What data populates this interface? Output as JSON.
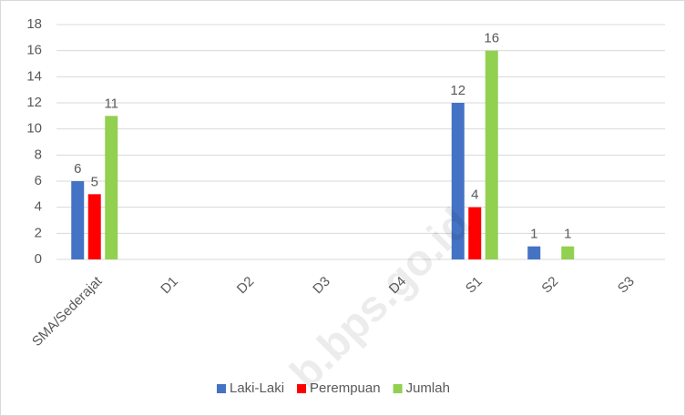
{
  "chart_data": {
    "type": "bar",
    "categories": [
      "SMA/Sederajat",
      "D1",
      "D2",
      "D3",
      "D4",
      "S1",
      "S2",
      "S3"
    ],
    "series": [
      {
        "name": "Laki-Laki",
        "color": "#4472c4",
        "values": [
          6,
          null,
          null,
          null,
          null,
          12,
          1,
          null
        ]
      },
      {
        "name": "Perempuan",
        "color": "#ff0000",
        "values": [
          5,
          null,
          null,
          null,
          null,
          4,
          null,
          null
        ]
      },
      {
        "name": "Jumlah",
        "color": "#92d050",
        "values": [
          11,
          null,
          null,
          null,
          null,
          16,
          1,
          null
        ]
      }
    ],
    "ylim": [
      0,
      18
    ],
    "yticks": [
      0,
      2,
      4,
      6,
      8,
      10,
      12,
      14,
      16,
      18
    ],
    "grid": true,
    "legend": "bottom",
    "watermark": "b.bps.go.id"
  }
}
